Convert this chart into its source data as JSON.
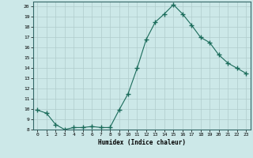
{
  "x": [
    0,
    1,
    2,
    3,
    4,
    5,
    6,
    7,
    8,
    9,
    10,
    11,
    12,
    13,
    14,
    15,
    16,
    17,
    18,
    19,
    20,
    21,
    22,
    23
  ],
  "y": [
    9.9,
    9.6,
    8.5,
    8.0,
    8.2,
    8.2,
    8.3,
    8.2,
    8.2,
    9.9,
    11.5,
    14.0,
    16.8,
    18.5,
    19.3,
    20.2,
    19.3,
    18.2,
    17.0,
    16.5,
    15.3,
    14.5,
    14.0,
    13.5
  ],
  "xlabel": "Humidex (Indice chaleur)",
  "bg_color": "#cce8e8",
  "line_color": "#1a6b5a",
  "marker_color": "#1a6b5a",
  "grid_color": "#b0cccc",
  "ylim": [
    8,
    20
  ],
  "xlim": [
    -0.5,
    23.5
  ],
  "yticks": [
    8,
    9,
    10,
    11,
    12,
    13,
    14,
    15,
    16,
    17,
    18,
    19,
    20
  ],
  "xticks": [
    0,
    1,
    2,
    3,
    4,
    5,
    6,
    7,
    8,
    9,
    10,
    11,
    12,
    13,
    14,
    15,
    16,
    17,
    18,
    19,
    20,
    21,
    22,
    23
  ]
}
